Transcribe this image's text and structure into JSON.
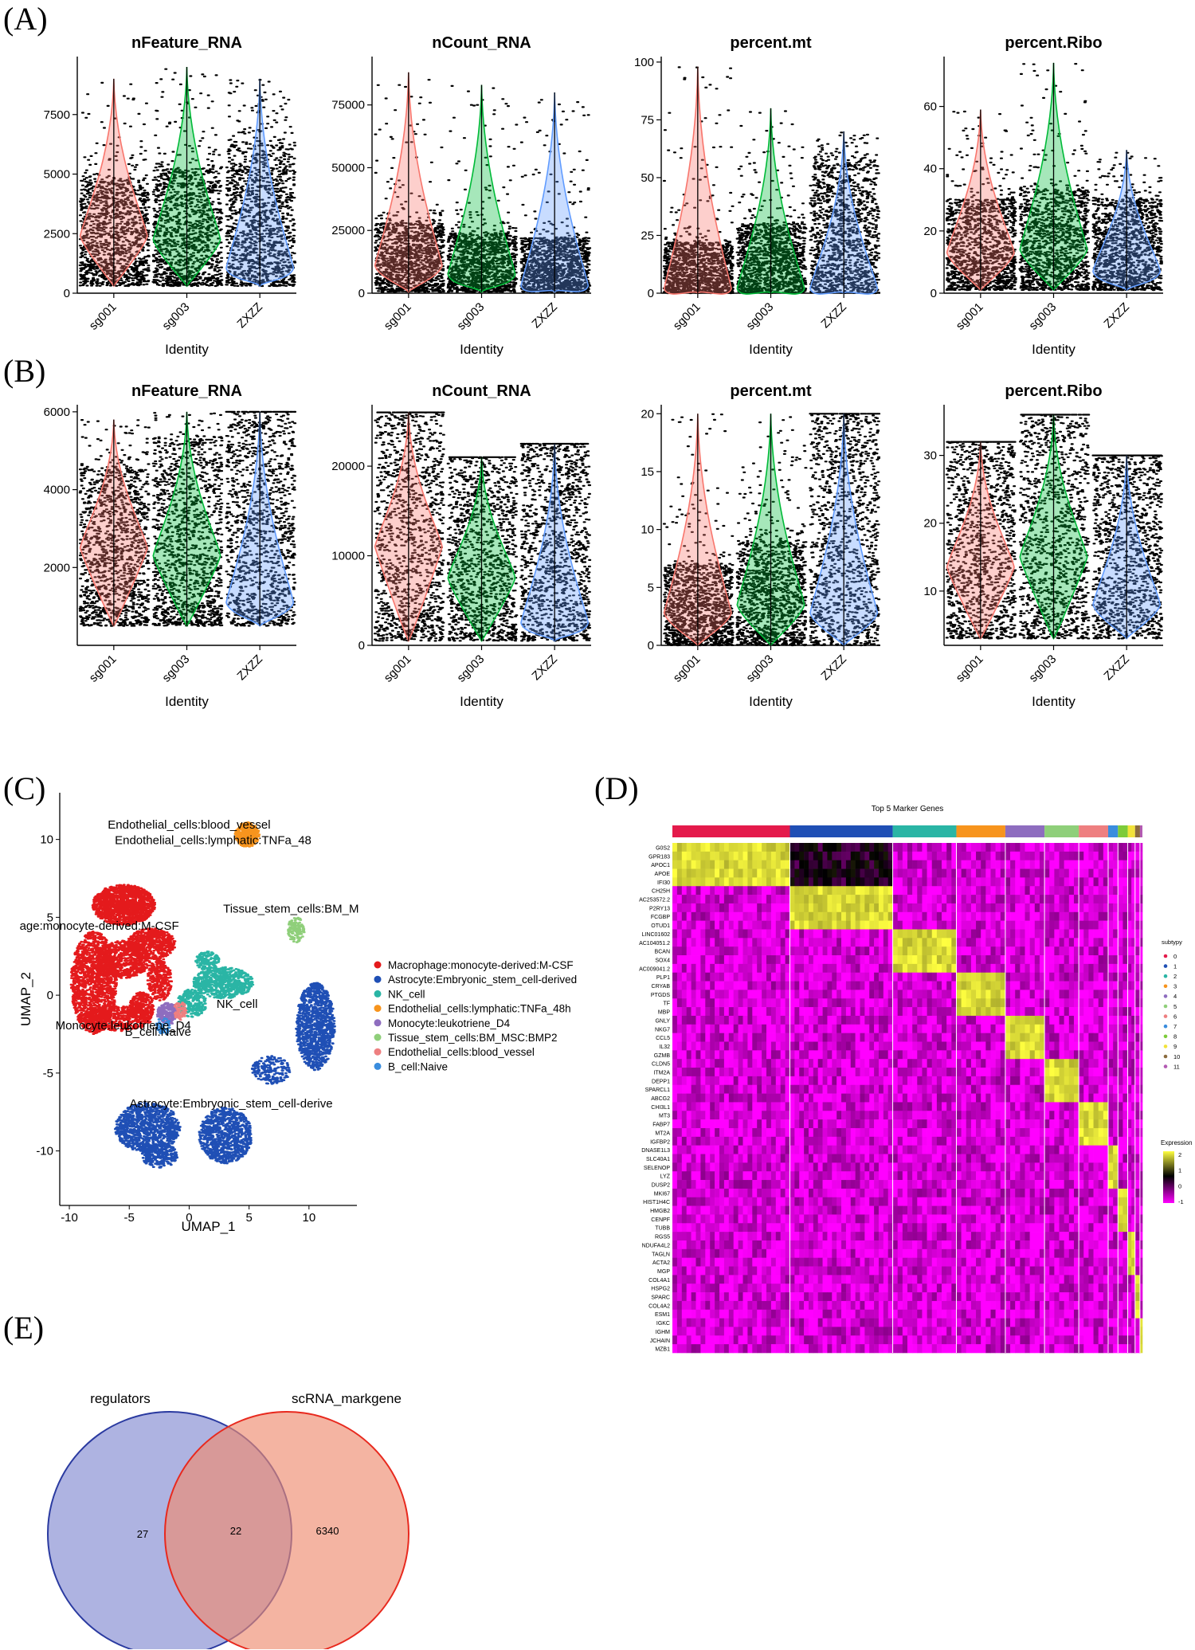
{
  "panels": {
    "A": {
      "letter": "(A)"
    },
    "B": {
      "letter": "(B)"
    },
    "C": {
      "letter": "(C)"
    },
    "D": {
      "letter": "(D)"
    },
    "E": {
      "letter": "(E)"
    }
  },
  "chart_data": [
    {
      "id": "A",
      "type": "violin",
      "xlabel": "Identity",
      "categories": [
        "sg001",
        "sg003",
        "ZXZZ"
      ],
      "colors": [
        "#F8766D",
        "#00BA38",
        "#619CFF"
      ],
      "subplots": [
        {
          "title": "nFeature_RNA",
          "ylim": [
            0,
            9800
          ],
          "yticks": [
            0,
            2500,
            5000,
            7500
          ],
          "median": [
            2400,
            2250,
            1050
          ],
          "density_peak": [
            2400,
            2250,
            1050
          ],
          "max": [
            9000,
            9500,
            9000
          ],
          "bulk_top": [
            4800,
            5200,
            6200
          ],
          "min": [
            300,
            300,
            300
          ]
        },
        {
          "title": "nCount_RNA",
          "ylim": [
            0,
            93000
          ],
          "yticks": [
            0,
            25000,
            50000,
            75000
          ],
          "median": [
            11000,
            7500,
            3000
          ],
          "density_peak": [
            11000,
            7500,
            3000
          ],
          "max": [
            88000,
            83000,
            80000
          ],
          "bulk_top": [
            28000,
            24000,
            22000
          ],
          "min": [
            500,
            500,
            500
          ]
        },
        {
          "title": "percent.mt",
          "ylim": [
            0,
            101
          ],
          "yticks": [
            0,
            25,
            50,
            75,
            100
          ],
          "median": [
            2,
            2,
            2
          ],
          "density_peak": [
            2,
            2,
            2
          ],
          "max": [
            98,
            80,
            70
          ],
          "bulk_top": [
            22,
            30,
            55
          ],
          "min": [
            0,
            0,
            0
          ]
        },
        {
          "title": "percent.Ribo",
          "ylim": [
            0,
            75
          ],
          "yticks": [
            0,
            20,
            40,
            60
          ],
          "median": [
            13,
            14,
            7
          ],
          "density_peak": [
            13,
            14,
            7
          ],
          "max": [
            59,
            74,
            46
          ],
          "bulk_top": [
            30,
            33,
            30
          ],
          "min": [
            1,
            1,
            1
          ]
        }
      ]
    },
    {
      "id": "B",
      "type": "violin",
      "xlabel": "Identity",
      "categories": [
        "sg001",
        "sg003",
        "ZXZZ"
      ],
      "colors": [
        "#F8766D",
        "#00BA38",
        "#619CFF"
      ],
      "subplots": [
        {
          "title": "nFeature_RNA",
          "ylim": [
            0,
            6100
          ],
          "yticks": [
            2000,
            4000,
            6000
          ],
          "median": [
            2500,
            2300,
            1100
          ],
          "density_peak": [
            2500,
            2300,
            1100
          ],
          "max": [
            5800,
            6000,
            6000
          ],
          "bulk_top": [
            4500,
            5200,
            6000
          ],
          "min": [
            500,
            500,
            500
          ]
        },
        {
          "title": "nCount_RNA",
          "ylim": [
            0,
            26500
          ],
          "yticks": [
            0,
            10000,
            20000
          ],
          "median": [
            11000,
            7500,
            2500
          ],
          "density_peak": [
            11000,
            7500,
            2500
          ],
          "max": [
            26000,
            21000,
            22500
          ],
          "bulk_top": [
            26000,
            21000,
            22500
          ],
          "min": [
            500,
            500,
            500
          ]
        },
        {
          "title": "percent.mt",
          "ylim": [
            0,
            20.5
          ],
          "yticks": [
            0,
            5,
            10,
            15,
            20
          ],
          "median": [
            2.8,
            3.5,
            2.8
          ],
          "density_peak": [
            2.8,
            3.5,
            2.8
          ],
          "max": [
            20,
            20,
            20
          ],
          "bulk_top": [
            7,
            9,
            20
          ],
          "min": [
            0,
            0,
            0
          ]
        },
        {
          "title": "percent.Ribo",
          "ylim": [
            2,
            37
          ],
          "yticks": [
            10,
            20,
            30
          ],
          "median": [
            13.5,
            15,
            8
          ],
          "density_peak": [
            13.5,
            15,
            8
          ],
          "max": [
            32,
            36,
            30
          ],
          "bulk_top": [
            32,
            36,
            30
          ],
          "min": [
            3,
            3,
            3
          ]
        }
      ]
    },
    {
      "id": "C",
      "type": "scatter",
      "xlabel": "UMAP_1",
      "ylabel": "UMAP_2",
      "xlim": [
        -10.8,
        14
      ],
      "ylim": [
        -13.5,
        13
      ],
      "xticks": [
        -10,
        -5,
        0,
        5,
        10
      ],
      "yticks": [
        -10,
        -5,
        0,
        5,
        10
      ],
      "legend_position": "right",
      "series": [
        {
          "name": "Macrophage:monocyte-derived:M-CSF",
          "color": "#E41A1C"
        },
        {
          "name": "Astrocyte:Embryonic_stem_cell-derived",
          "color": "#1F4FB5"
        },
        {
          "name": "NK_cell",
          "color": "#2AB5A5"
        },
        {
          "name": "Endothelial_cells:lymphatic:TNFa_48h",
          "color": "#F7941D"
        },
        {
          "name": "Monocyte:leukotriene_D4",
          "color": "#8E6DBF"
        },
        {
          "name": "Tissue_stem_cells:BM_MSC:BMP2",
          "color": "#8FCF7A"
        },
        {
          "name": "Endothelial_cells:blood_vessel",
          "color": "#EE7F80"
        },
        {
          "name": "B_cell:Naive",
          "color": "#3A8DDE"
        }
      ],
      "annotations": [
        {
          "text": "Endothelial_cells:blood_vessel",
          "x": 0.0,
          "y": 10.7
        },
        {
          "text": "Endothelial_cells:lymphatic:TNFa_48",
          "x": 2.0,
          "y": 9.7
        },
        {
          "text": "Tissue_stem_cells:BM_M",
          "x": 8.5,
          "y": 5.3
        },
        {
          "text": "age:monocyte-derived:M-CSF",
          "x": -7.5,
          "y": 4.2
        },
        {
          "text": "NK_cell",
          "x": 4.0,
          "y": -0.8
        },
        {
          "text": "Monocyte:leukotriene_D4",
          "x": -5.5,
          "y": -2.2
        },
        {
          "text": "B_cell:Naive",
          "x": -2.6,
          "y": -2.6
        },
        {
          "text": "Astrocyte:Embryonic_stem_cell-derive",
          "x": 3.5,
          "y": -7.2
        }
      ]
    },
    {
      "id": "D",
      "type": "heatmap",
      "title": "Top 5 Marker Genes",
      "genes": [
        "G0S2",
        "GPR183",
        "APOC1",
        "APOE",
        "IFI30",
        "CH25H",
        "AC253572.2",
        "P2RY13",
        "FCGBP",
        "OTUD1",
        "LINC01602",
        "AC104051.2",
        "BCAN",
        "SOX4",
        "AC009041.2",
        "PLP1",
        "CRYAB",
        "PTGDS",
        "TF",
        "MBP",
        "GNLY",
        "NKG7",
        "CCL5",
        "IL32",
        "GZMB",
        "CLDN5",
        "ITM2A",
        "DEPP1",
        "SPARCL1",
        "ABCG2",
        "CHI3L1",
        "MT3",
        "FABP7",
        "MT2A",
        "IGFBP2",
        "DNASE1L3",
        "SLC40A1",
        "SELENOP",
        "LYZ",
        "DUSP2",
        "MKI67",
        "HIST1H4C",
        "HMGB2",
        "CENPF",
        "TUBB",
        "RGS5",
        "NDUFA4L2",
        "TAGLN",
        "ACTA2",
        "MGP",
        "COL4A1",
        "HSPG2",
        "SPARC",
        "COL4A2",
        "ESM1",
        "IGKC",
        "IGHM",
        "JCHAIN",
        "MZB1"
      ],
      "cluster_widths": [
        0.24,
        0.21,
        0.13,
        0.1,
        0.08,
        0.07,
        0.06,
        0.02,
        0.02,
        0.015,
        0.01,
        0.005
      ],
      "legend_title": "subtypy",
      "legend_labels": [
        "0",
        "1",
        "2",
        "3",
        "4",
        "5",
        "6",
        "7",
        "8",
        "9",
        "10",
        "11"
      ],
      "cluster_colors": [
        "#E41A4B",
        "#1F4FB5",
        "#2AB5A5",
        "#F7941D",
        "#8E6DBF",
        "#8FCF7A",
        "#EE7F80",
        "#3A8DDE",
        "#7DCB3A",
        "#F2E33A",
        "#8B6B3E",
        "#B35BB3"
      ],
      "scale_title": "Expression",
      "scale_ticks": [
        "2",
        "1",
        "0",
        "-1"
      ],
      "scale_values": [
        2,
        1,
        0,
        -1
      ],
      "scale_colors": [
        "#FFFF40",
        "#000000",
        "#FF00FF"
      ]
    },
    {
      "id": "E",
      "type": "venn",
      "sets": [
        {
          "name": "regulators",
          "only": "27",
          "color": "#8B93D4"
        },
        {
          "name": "scRNA_markgene",
          "only": "6340",
          "color": "#EE8C70"
        }
      ],
      "intersection": "22"
    }
  ]
}
